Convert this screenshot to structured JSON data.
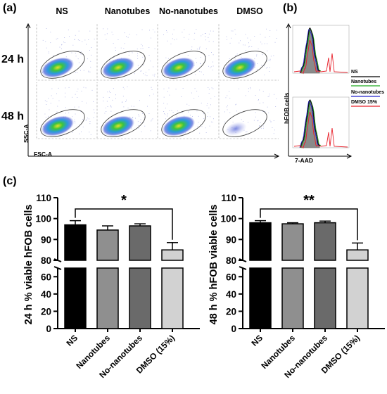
{
  "panel_labels": {
    "a": "(a)",
    "b": "(b)",
    "c": "(c)"
  },
  "flow": {
    "columns": [
      "NS",
      "Nanotubes",
      "No-nanotubes",
      "DMSO"
    ],
    "rows": [
      "24 h",
      "48 h"
    ],
    "x_axis_label": "FSC-A",
    "y_axis_label": "SSC-A"
  },
  "histogram": {
    "x_axis_label": "7-AAD",
    "y_axis_label": "hFOB cells",
    "legend": [
      {
        "name": "NS",
        "color": "#000000"
      },
      {
        "name": "Nanotubes",
        "color": "#22aa22"
      },
      {
        "name": "No-nanotubes",
        "color": "#2222cc"
      },
      {
        "name": "DMSO 15%",
        "color": "#e8202a"
      }
    ]
  },
  "chart_data": [
    {
      "type": "bar",
      "ylabel": "24 h % viable hFOB cells",
      "categories": [
        "NS",
        "Nanotubes",
        "No-nanotubes",
        "DMSO (15%)"
      ],
      "values": [
        97,
        94.5,
        96.5,
        85
      ],
      "errors": [
        2,
        2,
        1,
        3.5
      ],
      "colors": [
        "#000000",
        "#8f8f8f",
        "#6a6a6a",
        "#d2d2d2"
      ],
      "y_axis_break": true,
      "lower_ylim": [
        0,
        70
      ],
      "lower_ticks": [
        0,
        20,
        40,
        60
      ],
      "upper_ylim": [
        80,
        110
      ],
      "upper_ticks": [
        80,
        90,
        100,
        110
      ],
      "significance": {
        "label": "*",
        "from": "NS",
        "to": "DMSO (15%)"
      }
    },
    {
      "type": "bar",
      "ylabel": "48 h % hFOB viable cells",
      "categories": [
        "NS",
        "Nanotubes",
        "No-nanotubes",
        "DMSO (15%)"
      ],
      "values": [
        98,
        97.5,
        98,
        85
      ],
      "errors": [
        1,
        0.5,
        0.8,
        3.3
      ],
      "colors": [
        "#000000",
        "#8f8f8f",
        "#6a6a6a",
        "#d2d2d2"
      ],
      "y_axis_break": true,
      "lower_ylim": [
        0,
        70
      ],
      "lower_ticks": [
        0,
        20,
        40,
        60
      ],
      "upper_ylim": [
        80,
        110
      ],
      "upper_ticks": [
        80,
        90,
        100,
        110
      ],
      "significance": {
        "label": "**",
        "from": "NS",
        "to": "DMSO (15%)"
      }
    }
  ]
}
